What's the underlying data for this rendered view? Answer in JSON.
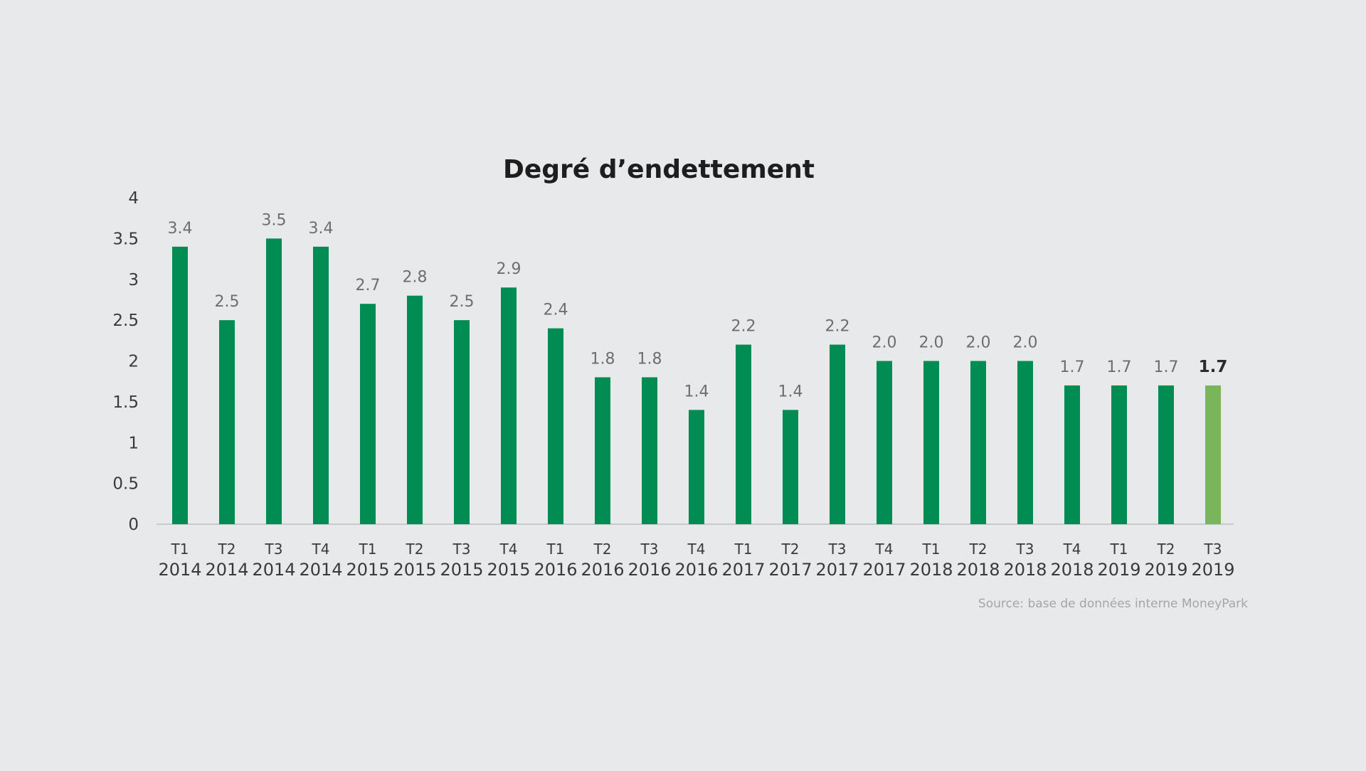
{
  "colors": {
    "background": "#e8e9ea",
    "bar": "#008c52",
    "bar_highlight": "#7ab55c",
    "axis": "#c9c9c9"
  },
  "chart_data": {
    "type": "bar",
    "title": "Degré d’endettement",
    "categories": [
      [
        "T1",
        "2014"
      ],
      [
        "T2",
        "2014"
      ],
      [
        "T3",
        "2014"
      ],
      [
        "T4",
        "2014"
      ],
      [
        "T1",
        "2015"
      ],
      [
        "T2",
        "2015"
      ],
      [
        "T3",
        "2015"
      ],
      [
        "T4",
        "2015"
      ],
      [
        "T1",
        "2016"
      ],
      [
        "T2",
        "2016"
      ],
      [
        "T3",
        "2016"
      ],
      [
        "T4",
        "2016"
      ],
      [
        "T1",
        "2017"
      ],
      [
        "T2",
        "2017"
      ],
      [
        "T3",
        "2017"
      ],
      [
        "T4",
        "2017"
      ],
      [
        "T1",
        "2018"
      ],
      [
        "T2",
        "2018"
      ],
      [
        "T3",
        "2018"
      ],
      [
        "T4",
        "2018"
      ],
      [
        "T1",
        "2019"
      ],
      [
        "T2",
        "2019"
      ],
      [
        "T3",
        "2019"
      ]
    ],
    "values": [
      3.4,
      2.5,
      3.5,
      3.4,
      2.7,
      2.8,
      2.5,
      2.9,
      2.4,
      1.8,
      1.8,
      1.4,
      2.2,
      1.4,
      2.2,
      2.0,
      2.0,
      2.0,
      2.0,
      1.7,
      1.7,
      1.7,
      1.7
    ],
    "data_labels": [
      "3.4",
      "2.5",
      "3.5",
      "3.4",
      "2.7",
      "2.8",
      "2.5",
      "2.9",
      "2.4",
      "1.8",
      "1.8",
      "1.4",
      "2.2",
      "1.4",
      "2.2",
      "2.0",
      "2.0",
      "2.0",
      "2.0",
      "1.7",
      "1.7",
      "1.7",
      "1.7"
    ],
    "highlighted_index": 22,
    "y_ticks": [
      "0",
      "0.5",
      "1",
      "1.5",
      "2",
      "2.5",
      "3",
      "3.5",
      "4"
    ],
    "ylim": [
      0,
      4
    ],
    "grid": false,
    "legend": "none",
    "source": "Source: base de données interne MoneyPark"
  }
}
